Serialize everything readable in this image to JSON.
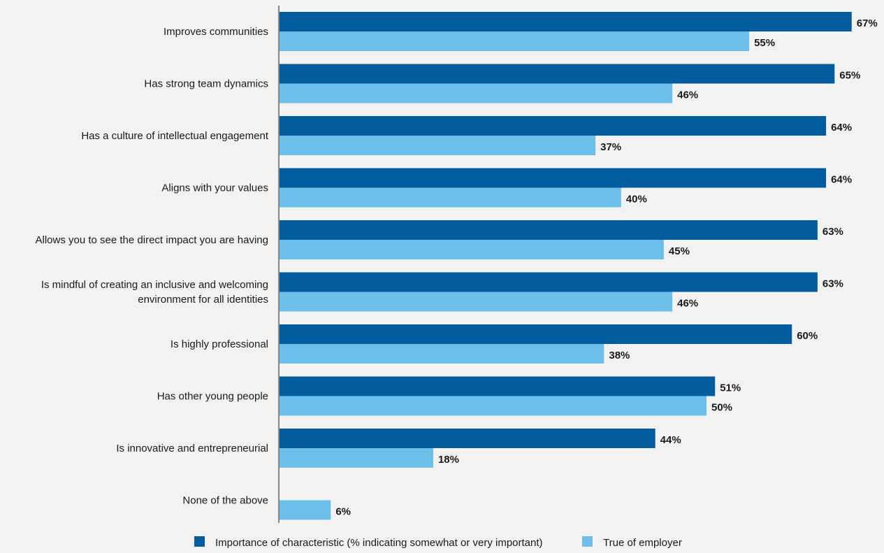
{
  "chart_data": {
    "type": "bar",
    "orientation": "horizontal",
    "categories": [
      [
        "Improves communities"
      ],
      [
        "Has strong team dynamics"
      ],
      [
        "Has a culture of intellectual engagement"
      ],
      [
        "Aligns with your values"
      ],
      [
        "Allows you to see the direct impact you are having"
      ],
      [
        "Is mindful of creating an inclusive and welcoming",
        "environment for all identities"
      ],
      [
        "Is highly professional"
      ],
      [
        "Has other young people"
      ],
      [
        "Is innovative and entrepreneurial"
      ],
      [
        "None of the above"
      ]
    ],
    "series": [
      {
        "name": "Importance of characteristic (% indicating somewhat or very important)",
        "color": "#035c9e",
        "values": [
          67,
          65,
          64,
          64,
          63,
          63,
          60,
          51,
          44,
          null
        ],
        "labels": [
          "67%",
          "65%",
          "64%",
          "64%",
          "63%",
          "63%",
          "60%",
          "51%",
          "44%",
          ""
        ]
      },
      {
        "name": "True of employer",
        "color": "#6bbfe9",
        "values": [
          55,
          46,
          37,
          40,
          45,
          46,
          38,
          50,
          18,
          6
        ],
        "labels": [
          "55%",
          "46%",
          "37%",
          "40%",
          "45%",
          "46%",
          "38%",
          "50%",
          "18%",
          "6%"
        ]
      }
    ],
    "xlim": [
      0,
      67
    ],
    "grid": false,
    "legend_position": "bottom"
  }
}
